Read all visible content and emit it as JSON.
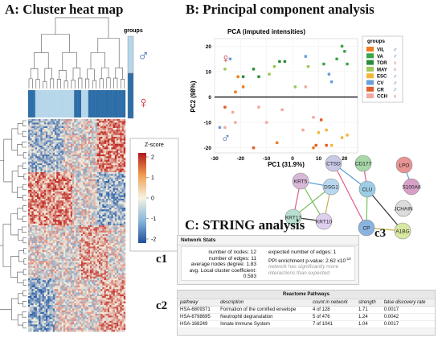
{
  "panels": {
    "a_title": "A: Cluster heat map",
    "b_title": "B: Principal component analysis",
    "c_title": "C: STRING analysis",
    "c1": "c1",
    "c2": "c2",
    "c3": "c3"
  },
  "heatmap": {
    "groups_label": "groups",
    "male_symbol": "♂",
    "female_symbol": "♀",
    "zscore_label": "Z-score",
    "scale_ticks": [
      "2",
      "1",
      "0",
      "-1",
      "-2"
    ],
    "colors": {
      "high": "#c0261f",
      "mid": "#f4f0e0",
      "low": "#2c5fa8",
      "male": "#b6d6ea",
      "female": "#2e6ea8"
    }
  },
  "chart_data": {
    "type": "scatter",
    "title": "PCA (imputed intensities)",
    "xlabel": "PC1 (31.9%)",
    "ylabel": "PC2 (98%)",
    "xlim": [
      -30,
      25
    ],
    "ylim": [
      -22,
      23
    ],
    "xticks": [
      "-30",
      "-20",
      "-10",
      "0",
      "10",
      "20"
    ],
    "yticks": [
      "20",
      "10",
      "0",
      "-10",
      "-20"
    ],
    "legend_title": "groups",
    "legend_position": "right",
    "female_symbol": "♀",
    "male_symbol": "♂",
    "series": [
      {
        "name": "VIL",
        "sex": "♂",
        "color": "#f07c1e",
        "points": [
          [
            -21,
            8
          ],
          [
            -19,
            4
          ],
          [
            -22,
            2
          ],
          [
            -6,
            -18
          ],
          [
            8,
            -20
          ]
        ]
      },
      {
        "name": "VA",
        "sex": "♂",
        "color": "#3aa64a",
        "points": [
          [
            19,
            20
          ],
          [
            20,
            18
          ],
          [
            21,
            13
          ],
          [
            17,
            15
          ],
          [
            12,
            13
          ]
        ]
      },
      {
        "name": "TOR",
        "sex": "♀",
        "color": "#2c8c3c",
        "points": [
          [
            -19,
            8
          ],
          [
            -13,
            8
          ],
          [
            -5,
            14
          ],
          [
            -3,
            14
          ],
          [
            -15,
            11
          ]
        ]
      },
      {
        "name": "MAY",
        "sex": "♀",
        "color": "#9ec85a",
        "points": [
          [
            -7,
            12
          ],
          [
            6,
            12
          ],
          [
            -9,
            9
          ],
          [
            -26,
            11
          ],
          [
            1,
            4
          ]
        ]
      },
      {
        "name": "ESC",
        "sex": "♂",
        "color": "#f3b53c",
        "points": [
          [
            10,
            -14
          ],
          [
            15,
            -19
          ],
          [
            19,
            -16
          ],
          [
            13,
            -13
          ],
          [
            21,
            -15
          ]
        ]
      },
      {
        "name": "CV",
        "sex": "♂",
        "color": "#6a9fd8",
        "points": [
          [
            14,
            9
          ],
          [
            15,
            6
          ],
          [
            -24,
            15
          ],
          [
            5,
            16
          ],
          [
            -28,
            -12
          ]
        ]
      },
      {
        "name": "CR",
        "sex": "♂",
        "color": "#e0602a",
        "points": [
          [
            -26,
            -4
          ],
          [
            9,
            -19
          ],
          [
            11,
            -9
          ],
          [
            13,
            -19
          ],
          [
            -15,
            -20
          ]
        ]
      },
      {
        "name": "CCH",
        "sex": "♀",
        "color": "#f4a8a0",
        "points": [
          [
            -23,
            -6
          ],
          [
            -22,
            -10
          ],
          [
            -13,
            -4
          ],
          [
            4,
            -13
          ],
          [
            -10,
            -10
          ],
          [
            -4,
            -5
          ],
          [
            8,
            -8
          ],
          [
            5,
            4
          ],
          [
            -26,
            -12
          ]
        ]
      }
    ]
  },
  "network_stats": {
    "header": "Network Stats",
    "left": [
      "number of nodes: 12",
      "number of edges: 11",
      "average nodes degree: 1.83",
      "avg. Local cluster coefficient: 0.583"
    ],
    "right_1": "expected number of edges: 1",
    "right_2": "PPI enrichment p-value: 2.62 x10",
    "right_2_exp": "-10",
    "right_3": "network has significantly more",
    "right_4": "interactions than expected"
  },
  "reactome": {
    "header": "Reactome Pathways",
    "columns": [
      "pathway",
      "description",
      "count in network",
      "strength",
      "false discovery rate"
    ],
    "rows": [
      [
        "HSA-6809371",
        "Formation of the cornified envelope",
        "4 of 128",
        "1.71",
        "0.0017"
      ],
      [
        "HSA-6798695",
        "Neutrophil degranulation",
        "5 of 476",
        "1.24",
        "0.0042"
      ],
      [
        "HSA-168249",
        "Innate Immune System",
        "7 of 1041",
        "1.04",
        "0.0017"
      ]
    ]
  },
  "string_network": {
    "nodes": [
      {
        "label": "CTSD",
        "color": "#c9c9e8"
      },
      {
        "label": "CD177",
        "color": "#a8d8a8"
      },
      {
        "label": "LPO",
        "color": "#e89494"
      },
      {
        "label": "S100A8",
        "color": "#d8a0c8"
      },
      {
        "label": "KRT5",
        "color": "#d8b8d8"
      },
      {
        "label": "DSG1",
        "color": "#b8d8f0"
      },
      {
        "label": "CLU",
        "color": "#9ccde4"
      },
      {
        "label": "JCHAIN",
        "color": "#dcdcdc"
      },
      {
        "label": "KRT17",
        "color": "#b8e0d0"
      },
      {
        "label": "KRT10",
        "color": "#e0d0f0"
      },
      {
        "label": "A1BG",
        "color": "#d8e8a0"
      },
      {
        "label": "CP",
        "color": "#8ab4e0"
      }
    ]
  }
}
